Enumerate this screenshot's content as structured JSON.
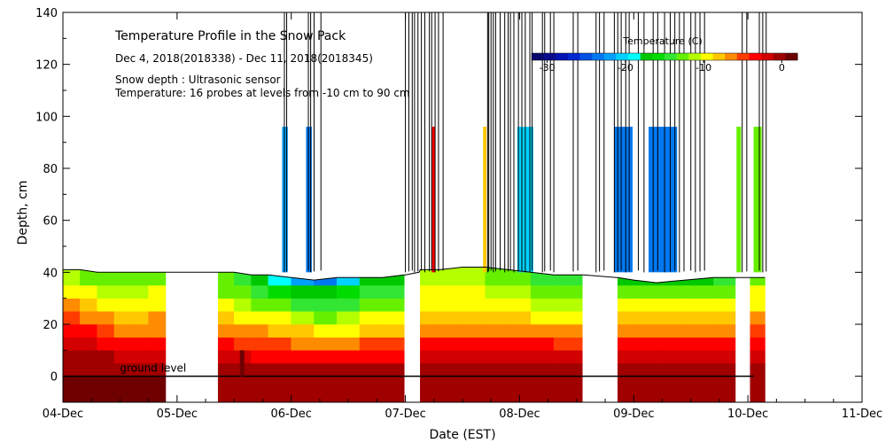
{
  "chart_data": {
    "type": "heatmap",
    "title": "Temperature Profile in the Snow Pack",
    "subtitle": "Dec  4, 2018(2018338) - Dec 11, 2018(2018345)",
    "notes": [
      "Snow depth : Ultrasonic sensor",
      "Temperature: 16 probes at levels from -10 cm to 90 cm"
    ],
    "xlabel": "Date (EST)",
    "ylabel": "Depth, cm",
    "x_ticks": [
      "04-Dec",
      "05-Dec",
      "06-Dec",
      "07-Dec",
      "08-Dec",
      "09-Dec",
      "10-Dec",
      "11-Dec"
    ],
    "y_ticks": [
      0,
      20,
      40,
      60,
      80,
      100,
      120,
      140
    ],
    "xlim_days": [
      0,
      7
    ],
    "ylim": [
      -10,
      140
    ],
    "ground_label": "ground level",
    "colorbar": {
      "title": "Temperature (C)",
      "ticks": [
        -30,
        -20,
        -10,
        0
      ],
      "range": [
        -32,
        2
      ],
      "colors": [
        "#08086b",
        "#0a0a8c",
        "#0014b4",
        "#0028d2",
        "#0050e6",
        "#0078f0",
        "#00a0ff",
        "#00d2ff",
        "#00ffff",
        "#00c800",
        "#00dc00",
        "#33e633",
        "#66f000",
        "#b4ff00",
        "#ffff00",
        "#ffc800",
        "#ff8c00",
        "#ff3c00",
        "#ff0000",
        "#d20000",
        "#a00000",
        "#6e0000"
      ]
    },
    "bands_depth_cm": [
      -10,
      0,
      5,
      10,
      15,
      20,
      25,
      30,
      35
    ],
    "columns": [
      {
        "t": 0.0,
        "snow": 41,
        "temps": [
          1,
          0,
          -1,
          -2,
          -3,
          -5,
          -7,
          -9,
          -11
        ]
      },
      {
        "t": 0.15,
        "snow": 41,
        "temps": [
          1,
          0,
          -1,
          -2,
          -4,
          -6,
          -8,
          -10,
          -12
        ]
      },
      {
        "t": 0.3,
        "snow": 40,
        "temps": [
          1,
          0,
          -1,
          -3,
          -5,
          -7,
          -9,
          -11,
          -13
        ]
      },
      {
        "t": 0.45,
        "snow": 40,
        "temps": [
          1,
          0,
          -2,
          -4,
          -6,
          -8,
          -10,
          -11,
          -13
        ]
      },
      {
        "t": 0.6,
        "snow": 40,
        "temps": [
          1,
          0,
          -2,
          -4,
          -6,
          -8,
          -9,
          -11,
          -12
        ]
      },
      {
        "t": 0.75,
        "snow": 40,
        "temps": [
          1,
          0,
          -2,
          -4,
          -6,
          -7,
          -9,
          -10,
          -12
        ]
      },
      {
        "t": 0.9,
        "snow": 40,
        "temps": [
          1,
          0,
          -2,
          -4,
          -5,
          -7,
          -8,
          -10,
          -11
        ]
      },
      {
        "t": 1.0,
        "snow": 40,
        "temps": null
      },
      {
        "t": 1.35,
        "snow": 40,
        "temps": null
      },
      {
        "t": 1.36,
        "snow": 40,
        "temps": [
          0,
          0,
          -2,
          -4,
          -6,
          -8,
          -10,
          -12,
          -13
        ]
      },
      {
        "t": 1.5,
        "snow": 40,
        "temps": [
          0,
          0,
          -2,
          -5,
          -7,
          -9,
          -11,
          -13,
          -15
        ]
      },
      {
        "t": 1.65,
        "snow": 39,
        "temps": [
          0,
          0,
          -3,
          -5,
          -7,
          -9,
          -12,
          -15,
          -17
        ]
      },
      {
        "t": 1.8,
        "snow": 39,
        "temps": [
          0,
          0,
          -3,
          -5,
          -8,
          -10,
          -13,
          -16,
          -19
        ]
      },
      {
        "t": 2.0,
        "snow": 38,
        "temps": [
          0,
          0,
          -3,
          -6,
          -8,
          -11,
          -14,
          -17,
          -22
        ]
      },
      {
        "t": 2.2,
        "snow": 37,
        "temps": [
          0,
          0,
          -3,
          -6,
          -9,
          -12,
          -15,
          -18,
          -23
        ]
      },
      {
        "t": 2.4,
        "snow": 38,
        "temps": [
          0,
          0,
          -3,
          -6,
          -9,
          -11,
          -14,
          -16,
          -20
        ]
      },
      {
        "t": 2.6,
        "snow": 38,
        "temps": [
          0,
          0,
          -3,
          -5,
          -8,
          -10,
          -13,
          -15,
          -18
        ]
      },
      {
        "t": 2.8,
        "snow": 38,
        "temps": [
          0,
          0,
          -3,
          -5,
          -8,
          -10,
          -12,
          -14,
          -17
        ]
      },
      {
        "t": 2.99,
        "snow": 39,
        "temps": [
          0,
          0,
          -3,
          -5,
          -7,
          -10,
          -12,
          -14,
          -16
        ]
      },
      {
        "t": 3.0,
        "snow": 39,
        "temps": null
      },
      {
        "t": 3.12,
        "snow": 40,
        "temps": null
      },
      {
        "t": 3.13,
        "snow": 41,
        "temps": [
          0,
          0,
          -2,
          -4,
          -6,
          -8,
          -9,
          -10,
          -11
        ]
      },
      {
        "t": 3.3,
        "snow": 41,
        "temps": [
          0,
          0,
          -2,
          -4,
          -6,
          -8,
          -9,
          -10,
          -11
        ]
      },
      {
        "t": 3.5,
        "snow": 42,
        "temps": [
          0,
          0,
          -2,
          -4,
          -6,
          -8,
          -9,
          -10,
          -11
        ]
      },
      {
        "t": 3.7,
        "snow": 42,
        "temps": [
          0,
          0,
          -2,
          -4,
          -6,
          -8,
          -10,
          -11,
          -12
        ]
      },
      {
        "t": 3.9,
        "snow": 41,
        "temps": [
          0,
          0,
          -2,
          -4,
          -6,
          -8,
          -10,
          -11,
          -13
        ]
      },
      {
        "t": 4.1,
        "snow": 40,
        "temps": [
          0,
          0,
          -2,
          -4,
          -7,
          -9,
          -11,
          -12,
          -14
        ]
      },
      {
        "t": 4.3,
        "snow": 39,
        "temps": [
          0,
          0,
          -2,
          -5,
          -7,
          -9,
          -11,
          -13,
          -15
        ]
      },
      {
        "t": 4.55,
        "snow": 39,
        "temps": [
          0,
          0,
          -2,
          -5,
          -7,
          -9,
          -11,
          -13,
          -15
        ]
      },
      {
        "t": 4.56,
        "snow": 39,
        "temps": null
      },
      {
        "t": 4.85,
        "snow": 38,
        "temps": null
      },
      {
        "t": 4.86,
        "snow": 38,
        "temps": [
          0,
          0,
          -2,
          -4,
          -6,
          -8,
          -10,
          -13,
          -17
        ]
      },
      {
        "t": 5.0,
        "snow": 37,
        "temps": [
          0,
          0,
          -2,
          -4,
          -6,
          -8,
          -10,
          -13,
          -17
        ]
      },
      {
        "t": 5.2,
        "snow": 36,
        "temps": [
          0,
          0,
          -2,
          -4,
          -6,
          -8,
          -10,
          -13,
          -18
        ]
      },
      {
        "t": 5.45,
        "snow": 37,
        "temps": [
          0,
          0,
          -2,
          -4,
          -6,
          -8,
          -10,
          -13,
          -17
        ]
      },
      {
        "t": 5.7,
        "snow": 38,
        "temps": [
          0,
          0,
          -2,
          -4,
          -6,
          -8,
          -10,
          -12,
          -14
        ]
      },
      {
        "t": 5.89,
        "snow": 38,
        "temps": [
          0,
          0,
          -2,
          -4,
          -6,
          -8,
          -9,
          -11,
          -13
        ]
      },
      {
        "t": 5.9,
        "snow": 38,
        "temps": null
      },
      {
        "t": 6.01,
        "snow": 38,
        "temps": null
      },
      {
        "t": 6.02,
        "snow": 38,
        "temps": [
          0,
          0,
          -2,
          -4,
          -5,
          -7,
          -9,
          -10,
          -12
        ]
      },
      {
        "t": 6.15,
        "snow": 38,
        "temps": [
          0,
          0,
          -2,
          -4,
          -5,
          -7,
          -9,
          -10,
          -12
        ]
      }
    ],
    "spikes_days": [
      1.94,
      1.96,
      2.15,
      2.17,
      2.2,
      2.26,
      3.0,
      3.03,
      3.06,
      3.08,
      3.11,
      3.14,
      3.17,
      3.21,
      3.23,
      3.26,
      3.29,
      3.33,
      3.72,
      3.73,
      3.75,
      3.77,
      3.79,
      3.83,
      3.87,
      3.9,
      3.92,
      3.95,
      3.99,
      4.02,
      4.05,
      4.09,
      4.11,
      4.2,
      4.22,
      4.27,
      4.3,
      4.47,
      4.51,
      4.67,
      4.7,
      4.74,
      4.83,
      4.86,
      4.89,
      4.93,
      4.96,
      5.04,
      5.09,
      5.17,
      5.21,
      5.27,
      5.32,
      5.36,
      5.4,
      5.44,
      5.5,
      5.54,
      5.58,
      5.62,
      5.95,
      5.99,
      6.1,
      6.13,
      6.16
    ],
    "ice_columns": [
      {
        "t0": 1.92,
        "t1": 1.97,
        "temp": -22
      },
      {
        "t0": 2.13,
        "t1": 2.18,
        "temp": -24
      },
      {
        "t0": 3.23,
        "t1": 3.26,
        "temp": -4
      },
      {
        "t0": 3.68,
        "t1": 3.71,
        "temp": -8
      },
      {
        "t0": 3.98,
        "t1": 4.06,
        "temp": -20
      },
      {
        "t0": 4.05,
        "t1": 4.12,
        "temp": -20
      },
      {
        "t0": 4.83,
        "t1": 4.99,
        "temp": -24
      },
      {
        "t0": 5.13,
        "t1": 5.38,
        "temp": -24
      },
      {
        "t0": 5.9,
        "t1": 5.94,
        "temp": -12
      },
      {
        "t0": 6.05,
        "t1": 6.12,
        "temp": -12
      }
    ],
    "ground_marker_day": 1.55
  }
}
